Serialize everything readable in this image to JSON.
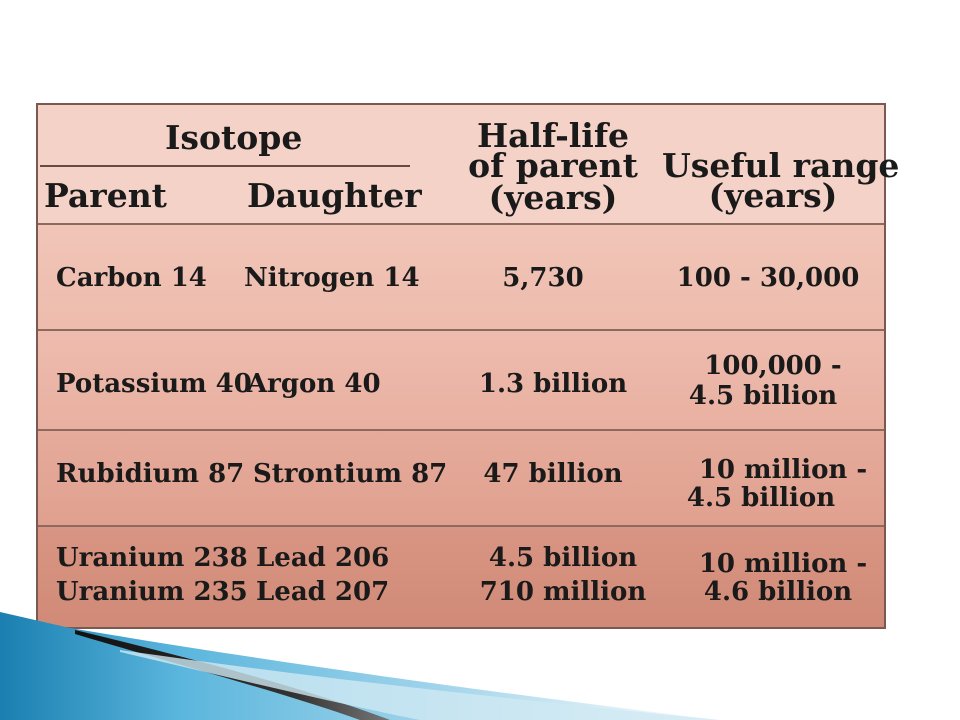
{
  "headers": {
    "isotope": "Isotope",
    "parent": "Parent",
    "daughter": "Daughter",
    "half_life": [
      "Half-life",
      "of parent",
      "(years)"
    ],
    "useful_range": [
      "Useful range",
      "(years)"
    ]
  },
  "rows": [
    {
      "parent": [
        "Carbon 14"
      ],
      "daughter": [
        "Nitrogen 14"
      ],
      "half_life": [
        "5,730"
      ],
      "useful_range": [
        "100 - 30,000"
      ]
    },
    {
      "parent": [
        "Potassium 40"
      ],
      "daughter": [
        "Argon 40"
      ],
      "half_life": [
        "1.3 billion"
      ],
      "useful_range": [
        "100,000 -",
        "4.5 billion"
      ]
    },
    {
      "parent": [
        "Rubidium 87"
      ],
      "daughter": [
        "Strontium 87"
      ],
      "half_life": [
        "47 billion"
      ],
      "useful_range": [
        "10 million -",
        "4.5 billion"
      ]
    },
    {
      "parent": [
        "Uranium 238",
        "Uranium 235"
      ],
      "daughter": [
        "Lead 206",
        "Lead 207"
      ],
      "half_life": [
        "4.5 billion",
        "710 million"
      ],
      "useful_range": [
        "10 million -",
        "4.6 billion"
      ]
    }
  ],
  "colors": {
    "swoosh_blue": "#1a7fb0",
    "swoosh_light": "#9fd3ea",
    "swoosh_dark": "#111111"
  }
}
